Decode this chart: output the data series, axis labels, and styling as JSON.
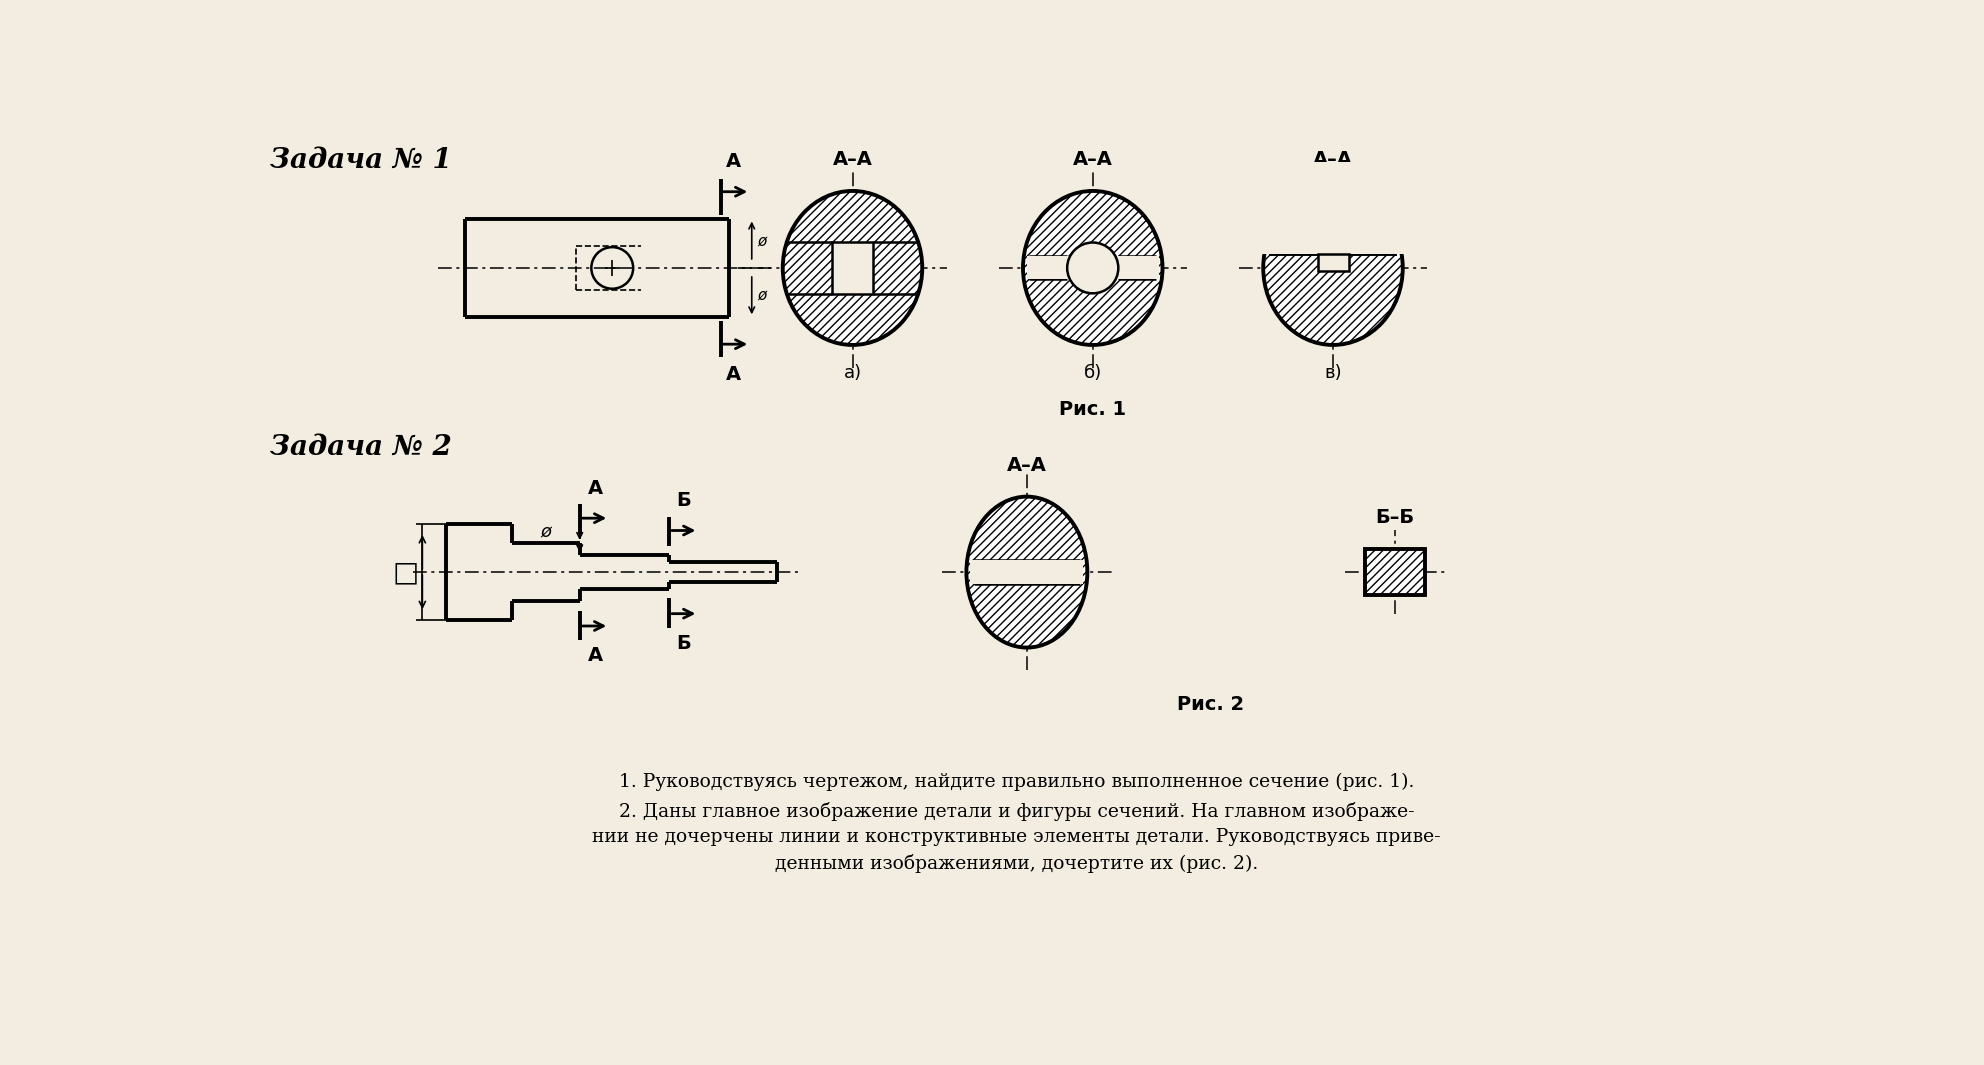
{
  "bg_color": "#f2ede0",
  "lc": "#000000",
  "title1": "Задача № 1",
  "title2": "Задача № 2",
  "caption1": "Рис. 1",
  "caption2": "Рис. 2",
  "label_a": "А",
  "label_aa": "А–А",
  "label_b": "Б",
  "label_bb": "Б–Б",
  "sublabel_a": "а)",
  "sublabel_b": "б)",
  "sublabel_v": "в)",
  "text1": "1. Руководствуясь чертежом, найдите правильно выполненное сечение (рис. 1).",
  "text2": "2. Даны главное изображение детали и фигуры сечений. На главном изображе-",
  "text3": "нии не дочерчены линии и конструктивные элементы детали. Руководствуясь приве-",
  "text4": "денными изображениями, дочертите их (рис. 2).",
  "lw_thick": 2.8,
  "lw_med": 1.8,
  "lw_thin": 1.2,
  "lw_cl": 1.1
}
